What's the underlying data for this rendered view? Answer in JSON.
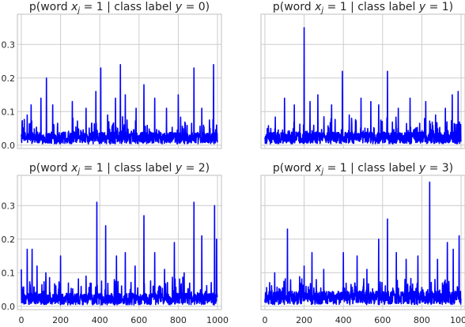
{
  "chart_data": {
    "type": "line",
    "series_color": "#0000ff",
    "grid": true,
    "sharex": true,
    "sharey": true,
    "xlim": [
      -20,
      1020
    ],
    "ylim": [
      -0.01,
      0.39
    ],
    "xticks": [
      0,
      200,
      400,
      600,
      800,
      1000
    ],
    "xtick_labels": [
      "0",
      "200",
      "400",
      "600",
      "800",
      "1000"
    ],
    "yticks": [
      0.0,
      0.1,
      0.2,
      0.3
    ],
    "ytick_labels": [
      "0.0",
      "0.1",
      "0.2",
      "0.3"
    ],
    "panels": [
      {
        "title_prefix": "p(word ",
        "title_var": "x",
        "title_sub": "j",
        "title_mid": " = 1 | class label ",
        "title_var2": "y",
        "title_suffix": " = 0)",
        "num_points": 1000,
        "baseline": 0.02,
        "noise": 0.035,
        "spikes": [
          [
            30,
            0.09
          ],
          [
            50,
            0.12
          ],
          [
            100,
            0.14
          ],
          [
            128,
            0.2
          ],
          [
            160,
            0.12
          ],
          [
            260,
            0.13
          ],
          [
            330,
            0.11
          ],
          [
            380,
            0.16
          ],
          [
            405,
            0.23
          ],
          [
            440,
            0.09
          ],
          [
            480,
            0.14
          ],
          [
            505,
            0.24
          ],
          [
            530,
            0.15
          ],
          [
            585,
            0.11
          ],
          [
            625,
            0.18
          ],
          [
            680,
            0.14
          ],
          [
            740,
            0.11
          ],
          [
            800,
            0.15
          ],
          [
            880,
            0.23
          ],
          [
            920,
            0.11
          ],
          [
            980,
            0.24
          ],
          [
            995,
            0.06
          ]
        ]
      },
      {
        "title_prefix": "p(word ",
        "title_var": "x",
        "title_sub": "j",
        "title_mid": " = 1 | class label ",
        "title_var2": "y",
        "title_suffix": " = 1)",
        "num_points": 1000,
        "baseline": 0.02,
        "noise": 0.035,
        "spikes": [
          [
            30,
            0.05
          ],
          [
            100,
            0.14
          ],
          [
            150,
            0.12
          ],
          [
            200,
            0.35
          ],
          [
            230,
            0.13
          ],
          [
            270,
            0.15
          ],
          [
            340,
            0.12
          ],
          [
            395,
            0.22
          ],
          [
            430,
            0.09
          ],
          [
            490,
            0.14
          ],
          [
            540,
            0.13
          ],
          [
            580,
            0.12
          ],
          [
            625,
            0.22
          ],
          [
            680,
            0.11
          ],
          [
            740,
            0.14
          ],
          [
            820,
            0.13
          ],
          [
            870,
            0.09
          ],
          [
            920,
            0.11
          ],
          [
            955,
            0.15
          ],
          [
            985,
            0.16
          ]
        ]
      },
      {
        "title_prefix": "p(word ",
        "title_var": "x",
        "title_sub": "j",
        "title_mid": " = 1 | class label ",
        "title_var2": "y",
        "title_suffix": " = 2)",
        "num_points": 1000,
        "baseline": 0.02,
        "noise": 0.035,
        "spikes": [
          [
            0,
            0.11
          ],
          [
            30,
            0.17
          ],
          [
            55,
            0.17
          ],
          [
            80,
            0.12
          ],
          [
            125,
            0.1
          ],
          [
            200,
            0.15
          ],
          [
            330,
            0.09
          ],
          [
            385,
            0.31
          ],
          [
            430,
            0.24
          ],
          [
            485,
            0.15
          ],
          [
            530,
            0.16
          ],
          [
            580,
            0.12
          ],
          [
            625,
            0.27
          ],
          [
            680,
            0.16
          ],
          [
            730,
            0.11
          ],
          [
            780,
            0.19
          ],
          [
            830,
            0.1
          ],
          [
            880,
            0.31
          ],
          [
            920,
            0.21
          ],
          [
            985,
            0.3
          ],
          [
            995,
            0.2
          ]
        ]
      },
      {
        "title_prefix": "p(word ",
        "title_var": "x",
        "title_sub": "j",
        "title_mid": " = 1 | class label ",
        "title_var2": "y",
        "title_suffix": " = 3)",
        "num_points": 1000,
        "baseline": 0.025,
        "noise": 0.04,
        "spikes": [
          [
            50,
            0.1
          ],
          [
            115,
            0.23
          ],
          [
            200,
            0.12
          ],
          [
            240,
            0.16
          ],
          [
            300,
            0.11
          ],
          [
            400,
            0.16
          ],
          [
            470,
            0.15
          ],
          [
            520,
            0.11
          ],
          [
            580,
            0.2
          ],
          [
            625,
            0.26
          ],
          [
            670,
            0.16
          ],
          [
            720,
            0.14
          ],
          [
            780,
            0.15
          ],
          [
            840,
            0.37
          ],
          [
            880,
            0.14
          ],
          [
            930,
            0.19
          ],
          [
            960,
            0.17
          ],
          [
            990,
            0.21
          ]
        ]
      }
    ]
  }
}
